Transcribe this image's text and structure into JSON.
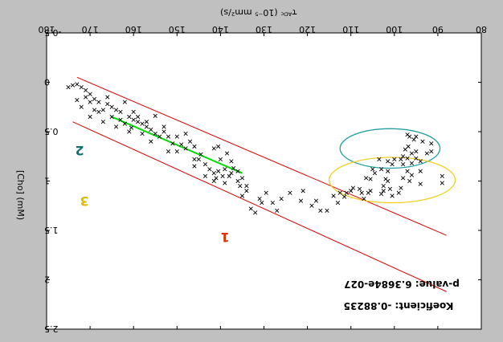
{
  "chart_data": {
    "type": "scatter",
    "orientation": "mirrored-horizontally",
    "title": "",
    "xlabel": "T_ADC (10^-5 mm^2/s)",
    "xlabel_display": "τᴬᴰᶜ (10⁻⁵ mm²/s)",
    "ylabel": "Cho (mM)",
    "ylabel_display": "[Cho] (mM)",
    "xlim": [
      80,
      180
    ],
    "ylim": [
      -0.5,
      2.5
    ],
    "y_inverted": true,
    "x_ticks": [
      "80",
      "90",
      "100",
      "110",
      "120",
      "130",
      "140",
      "150",
      "160",
      "170",
      "180"
    ],
    "y_ticks": [
      "-0.5",
      "0",
      "0.5",
      "1",
      "1.5",
      "2",
      "2.5"
    ],
    "x_tick_values": [
      80,
      90,
      100,
      110,
      120,
      130,
      140,
      150,
      160,
      170,
      180
    ],
    "y_tick_values": [
      -0.5,
      0,
      0.5,
      1,
      1.5,
      2,
      2.5
    ],
    "annotations": {
      "pvalue": "p-value: 6.3684e-027",
      "koef": "Koeficient: -0.88235"
    },
    "region_labels": {
      "one": "1",
      "two": "2",
      "three": "3"
    },
    "colors": {
      "bounds": "#e00000",
      "fit": "#00dd00",
      "ellipse2": "#20a0a0",
      "ellipse3": "#f0d020",
      "label1": "#e03000",
      "label2": "#107070",
      "label3": "#e0b800",
      "points": "#000000"
    },
    "bound_lines": [
      {
        "name": "upper-bound",
        "x": [
          88,
          173
        ],
        "y": [
          1.55,
          -0.05
        ]
      },
      {
        "name": "lower-bound",
        "x": [
          88,
          174
        ],
        "y": [
          2.12,
          0.4
        ]
      }
    ],
    "fit_line": {
      "x": [
        135,
        165
      ],
      "y": [
        0.92,
        0.35
      ]
    },
    "ellipses": [
      {
        "name": "ellipse-2",
        "cx": 101,
        "cy": 0.67,
        "rx": 11.5,
        "ry": 0.2
      },
      {
        "name": "ellipse-3",
        "cx": 100.5,
        "cy": 0.99,
        "rx": 14.5,
        "ry": 0.23
      }
    ],
    "points": [
      [
        91.5,
        0.7
      ],
      [
        92.5,
        0.72
      ],
      [
        91.5,
        0.62
      ],
      [
        93.5,
        0.6
      ],
      [
        95,
        0.55
      ],
      [
        95.5,
        0.58
      ],
      [
        96.5,
        0.55
      ],
      [
        97,
        0.53
      ],
      [
        96.8,
        0.65
      ],
      [
        95,
        0.7
      ],
      [
        96,
        0.72
      ],
      [
        97.5,
        0.68
      ],
      [
        98,
        0.75
      ],
      [
        97,
        0.77
      ],
      [
        95,
        0.77
      ],
      [
        94,
        0.8
      ],
      [
        96,
        0.82
      ],
      [
        98,
        0.83
      ],
      [
        98.5,
        0.78
      ],
      [
        100,
        0.78
      ],
      [
        100.5,
        0.83
      ],
      [
        101.5,
        0.8
      ],
      [
        103.5,
        0.78
      ],
      [
        101.5,
        0.9
      ],
      [
        103,
        0.88
      ],
      [
        105,
        0.88
      ],
      [
        94,
        0.9
      ],
      [
        96,
        0.94
      ],
      [
        97,
        0.9
      ],
      [
        98,
        0.97
      ],
      [
        89,
        0.95
      ],
      [
        89,
        1.02
      ],
      [
        94,
        1.03
      ],
      [
        96.5,
        1.0
      ],
      [
        98.5,
        1.07
      ],
      [
        101,
        1.08
      ],
      [
        102.5,
        1.05
      ],
      [
        101.5,
        1.0
      ],
      [
        102,
        0.98
      ],
      [
        104.5,
        0.92
      ],
      [
        105.5,
        0.98
      ],
      [
        106.5,
        0.97
      ],
      [
        99,
        1.12
      ],
      [
        100.5,
        1.15
      ],
      [
        103,
        1.13
      ],
      [
        102.5,
        1.1
      ],
      [
        105.5,
        1.1
      ],
      [
        106,
        1.12
      ],
      [
        107,
        1.18
      ],
      [
        107.5,
        1.12
      ],
      [
        108,
        1.08
      ],
      [
        109.5,
        1.07
      ],
      [
        110,
        1.1
      ],
      [
        111,
        1.12
      ],
      [
        111.5,
        1.16
      ],
      [
        112.5,
        1.12
      ],
      [
        114,
        1.15
      ],
      [
        113,
        1.22
      ],
      [
        115.5,
        1.3
      ],
      [
        117,
        1.3
      ],
      [
        118,
        1.2
      ],
      [
        119,
        1.25
      ],
      [
        121,
        1.1
      ],
      [
        121.5,
        1.2
      ],
      [
        124,
        1.12
      ],
      [
        126,
        1.18
      ],
      [
        127,
        1.3
      ],
      [
        128,
        1.22
      ],
      [
        129.5,
        1.12
      ],
      [
        130.5,
        1.22
      ],
      [
        131,
        1.18
      ],
      [
        132,
        1.32
      ],
      [
        133,
        1.28
      ],
      [
        134,
        1.05
      ],
      [
        135,
        1.15
      ],
      [
        135.5,
        1.05
      ],
      [
        135,
        0.97
      ],
      [
        136,
        0.9
      ],
      [
        137,
        0.87
      ],
      [
        137.5,
        0.92
      ],
      [
        138,
        0.95
      ],
      [
        139,
        0.88
      ],
      [
        139.5,
        0.95
      ],
      [
        140.5,
        0.9
      ],
      [
        141,
        0.97
      ],
      [
        141.5,
        0.92
      ],
      [
        142.5,
        0.88
      ],
      [
        143.5,
        0.83
      ],
      [
        140,
        0.78
      ],
      [
        137.5,
        0.8
      ],
      [
        140.5,
        0.65
      ],
      [
        138.5,
        0.72
      ],
      [
        141.5,
        0.67
      ],
      [
        144.5,
        0.73
      ],
      [
        145,
        0.78
      ],
      [
        146,
        0.65
      ],
      [
        147,
        0.6
      ],
      [
        148,
        0.67
      ],
      [
        149,
        0.63
      ],
      [
        150,
        0.7
      ],
      [
        146,
        0.78
      ],
      [
        141.5,
        1.0
      ],
      [
        143.5,
        0.95
      ],
      [
        139,
        1.02
      ],
      [
        136,
        1.0
      ],
      [
        134,
        1.1
      ],
      [
        151,
        0.62
      ],
      [
        152,
        0.55
      ],
      [
        153,
        0.5
      ],
      [
        154,
        0.55
      ],
      [
        155,
        0.52
      ],
      [
        156,
        0.48
      ],
      [
        157,
        0.45
      ],
      [
        158,
        0.42
      ],
      [
        159,
        0.4
      ],
      [
        160,
        0.38
      ],
      [
        161,
        0.35
      ],
      [
        155,
        0.34
      ],
      [
        157,
        0.4
      ],
      [
        159,
        0.35
      ],
      [
        160.5,
        0.46
      ],
      [
        162,
        0.42
      ],
      [
        163,
        0.3
      ],
      [
        164,
        0.28
      ],
      [
        165,
        0.25
      ],
      [
        166,
        0.22
      ],
      [
        167,
        0.28
      ],
      [
        168,
        0.2
      ],
      [
        169,
        0.17
      ],
      [
        170,
        0.12
      ],
      [
        171,
        0.08
      ],
      [
        172,
        0.05
      ],
      [
        173,
        0.02
      ],
      [
        174,
        0.03
      ],
      [
        175,
        0.05
      ],
      [
        163,
        0.38
      ],
      [
        165,
        0.35
      ],
      [
        167,
        0.4
      ],
      [
        168,
        0.3
      ],
      [
        170,
        0.2
      ],
      [
        171,
        0.15
      ],
      [
        172,
        0.25
      ],
      [
        169,
        0.28
      ],
      [
        164,
        0.45
      ],
      [
        161,
        0.5
      ],
      [
        158,
        0.52
      ],
      [
        156,
        0.6
      ],
      [
        153,
        0.45
      ],
      [
        150,
        0.55
      ],
      [
        148,
        0.52
      ],
      [
        160,
        0.3
      ],
      [
        166,
        0.15
      ],
      [
        170,
        0.35
      ],
      [
        173,
        0.18
      ],
      [
        162,
        0.2
      ],
      [
        152,
        0.7
      ],
      [
        146,
        0.85
      ]
    ]
  }
}
